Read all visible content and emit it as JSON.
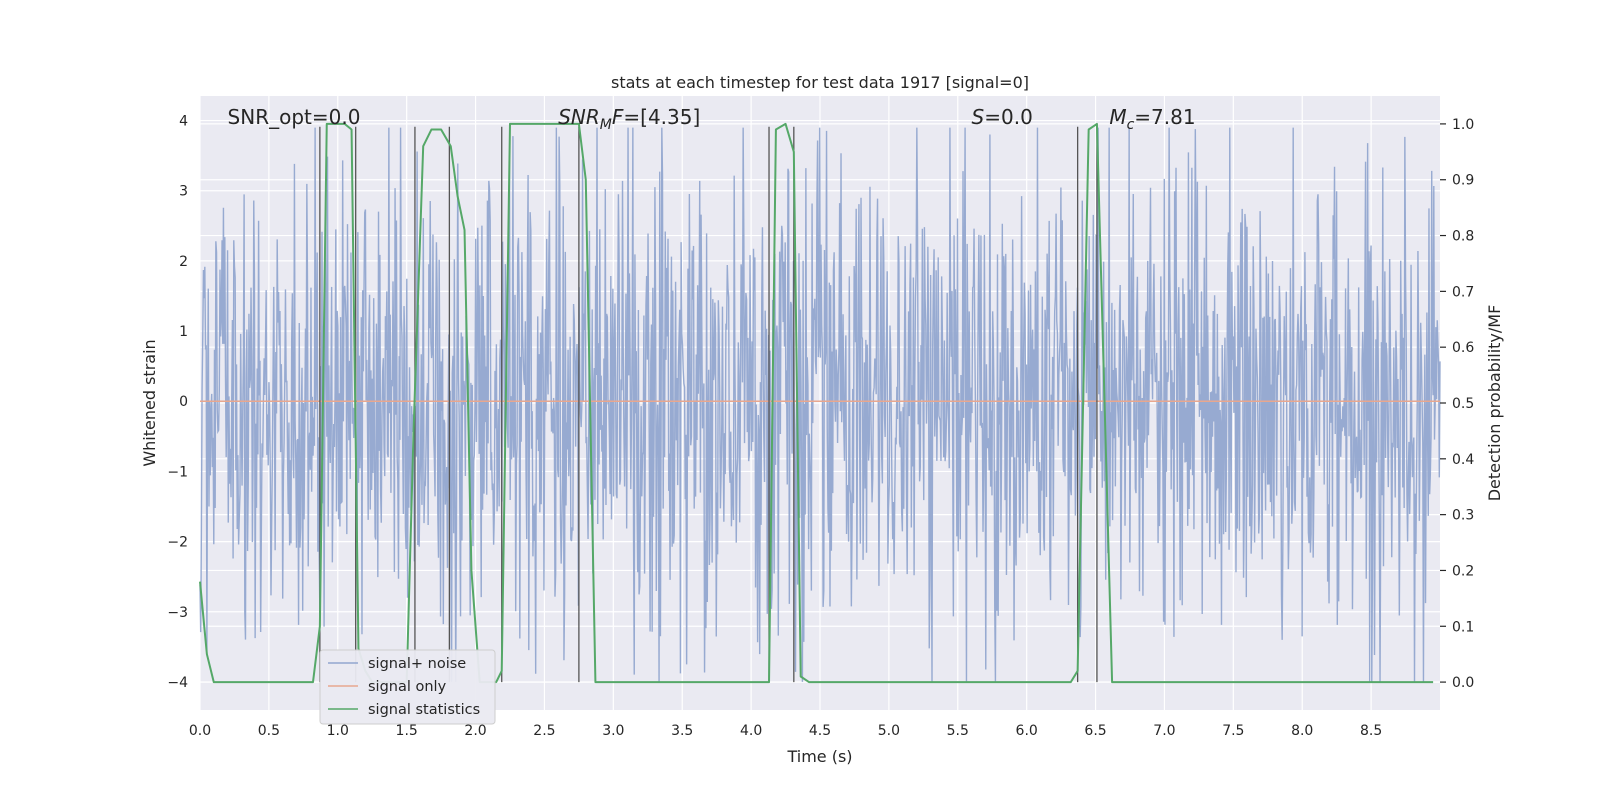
{
  "chart_data": {
    "type": "line",
    "title": "stats at each timestep for test data 1917 [signal=0]",
    "xlabel": "Time (s)",
    "ylabel": "Whitened strain",
    "y2label": "Detection probability/MF",
    "xlim": [
      0.0,
      9.0
    ],
    "ylim": [
      -4.4,
      4.35
    ],
    "y2lim": [
      -0.05,
      1.05
    ],
    "x_ticks": [
      "0.0",
      "0.5",
      "1.0",
      "1.5",
      "2.0",
      "2.5",
      "3.0",
      "3.5",
      "4.0",
      "4.5",
      "5.0",
      "5.5",
      "6.0",
      "6.5",
      "7.0",
      "7.5",
      "8.0",
      "8.5"
    ],
    "x_tick_values": [
      0.0,
      0.5,
      1.0,
      1.5,
      2.0,
      2.5,
      3.0,
      3.5,
      4.0,
      4.5,
      5.0,
      5.5,
      6.0,
      6.5,
      7.0,
      7.5,
      8.0,
      8.5
    ],
    "y_ticks": [
      "−4",
      "−3",
      "−2",
      "−1",
      "0",
      "1",
      "2",
      "3",
      "4"
    ],
    "y_tick_values": [
      -4,
      -3,
      -2,
      -1,
      0,
      1,
      2,
      3,
      4
    ],
    "y2_ticks": [
      "0.0",
      "0.1",
      "0.2",
      "0.3",
      "0.4",
      "0.5",
      "0.6",
      "0.7",
      "0.8",
      "0.9",
      "1.0"
    ],
    "y2_tick_values": [
      0.0,
      0.1,
      0.2,
      0.3,
      0.4,
      0.5,
      0.6,
      0.7,
      0.8,
      0.9,
      1.0
    ],
    "grid": true,
    "legend_position": "lower-left",
    "annotations": [
      {
        "parts": [
          {
            "t": "SNR_opt=0.0",
            "i": false
          }
        ],
        "x": 0.2
      },
      {
        "parts": [
          {
            "t": "SNR",
            "i": true
          },
          {
            "t": "M",
            "i": true,
            "sub": true
          },
          {
            "t": "F",
            "i": true
          },
          {
            "t": "=[4.35]",
            "i": false
          }
        ],
        "x": 2.6
      },
      {
        "parts": [
          {
            "t": "S",
            "i": true
          },
          {
            "t": "=0.0",
            "i": false
          }
        ],
        "x": 5.6
      },
      {
        "parts": [
          {
            "t": "M",
            "i": true
          },
          {
            "t": "c",
            "i": true,
            "sub": true
          },
          {
            "t": "=7.81",
            "i": false
          }
        ],
        "x": 6.6
      }
    ],
    "vlines": [
      0.87,
      1.13,
      1.56,
      1.81,
      2.19,
      2.75,
      4.13,
      4.31,
      6.37,
      6.51
    ],
    "series": [
      {
        "name": "signal+ noise",
        "axis": "left",
        "color": "#92a6cf",
        "kind": "noise",
        "envelope": {
          "typical": 1.6,
          "max": 3.9,
          "min": -4.0
        }
      },
      {
        "name": "signal only",
        "axis": "left",
        "color": "#e8a78f",
        "x": [
          0.0,
          9.0
        ],
        "y": [
          0.0,
          0.0
        ]
      },
      {
        "name": "signal statistics",
        "axis": "right",
        "color": "#55a868",
        "x": [
          0.0,
          0.05,
          0.1,
          0.82,
          0.87,
          0.92,
          1.0,
          1.05,
          1.1,
          1.15,
          1.2,
          1.25,
          1.5,
          1.55,
          1.62,
          1.68,
          1.75,
          1.82,
          1.87,
          1.92,
          1.97,
          2.03,
          2.08,
          2.15,
          2.19,
          2.25,
          2.5,
          2.75,
          2.8,
          2.87,
          2.92,
          4.1,
          4.13,
          4.18,
          4.25,
          4.31,
          4.36,
          4.42,
          6.32,
          6.37,
          6.45,
          6.51,
          6.56,
          6.62,
          6.68,
          8.95
        ],
        "y": [
          0.18,
          0.05,
          0.0,
          0.0,
          0.1,
          1.0,
          1.0,
          1.0,
          0.99,
          0.06,
          0.02,
          0.0,
          0.0,
          0.45,
          0.96,
          0.99,
          0.99,
          0.96,
          0.87,
          0.81,
          0.2,
          0.0,
          0.0,
          0.0,
          0.02,
          1.0,
          1.0,
          1.0,
          0.9,
          0.0,
          0.0,
          0.0,
          0.0,
          0.99,
          1.0,
          0.95,
          0.01,
          0.0,
          0.0,
          0.02,
          0.99,
          1.0,
          0.55,
          0.0,
          0.0,
          0.0
        ]
      }
    ]
  }
}
